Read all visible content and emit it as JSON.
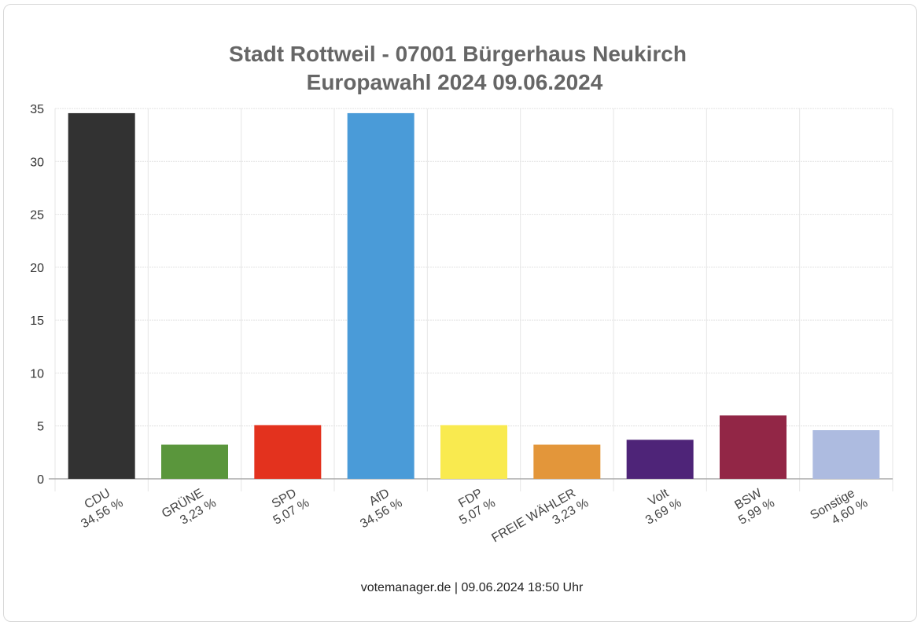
{
  "chart_data": {
    "type": "bar",
    "title": [
      "Stadt Rottweil - 07001 Bürgerhaus Neukirch",
      "Europawahl 2024 09.06.2024"
    ],
    "categories": [
      "CDU",
      "GRÜNE",
      "SPD",
      "AfD",
      "FDP",
      "FREIE WÄHLER",
      "Volt",
      "BSW",
      "Sonstige"
    ],
    "values": [
      34.56,
      3.23,
      5.07,
      34.56,
      5.07,
      3.23,
      3.69,
      5.99,
      4.6
    ],
    "value_labels": [
      "34,56 %",
      "3,23 %",
      "5,07 %",
      "34,56 %",
      "5,07 %",
      "3,23 %",
      "3,69 %",
      "5,99 %",
      "4,60 %"
    ],
    "colors": [
      "#323232",
      "#5a963c",
      "#e3321e",
      "#4a9bd8",
      "#f9ea4f",
      "#e3963a",
      "#4e2478",
      "#922646",
      "#adbbe0"
    ],
    "ylim": [
      0,
      35
    ],
    "yticks": [
      0,
      5,
      10,
      15,
      20,
      25,
      30,
      35
    ],
    "xlabel": "",
    "ylabel": "",
    "grid": true,
    "footer": "votemanager.de | 09.06.2024 18:50 Uhr"
  }
}
